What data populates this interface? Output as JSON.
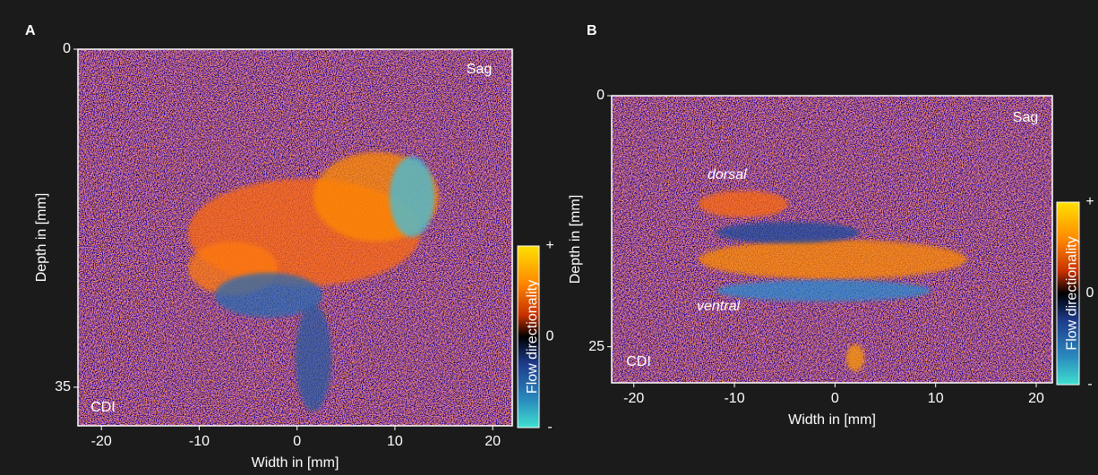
{
  "panels": [
    {
      "label": "A",
      "view": "Sag",
      "mode": "CDI",
      "x_axis_label": "Width in [mm]",
      "y_axis_label": "Depth in [mm]",
      "xlim": [
        -22.4,
        22
      ],
      "xticks": [
        -20,
        -10,
        0,
        10,
        20
      ],
      "ylim": [
        0,
        39
      ],
      "yticks": [
        0,
        35
      ],
      "colorbar": {
        "label": "Flow directionality",
        "ticks": [
          "+",
          "0",
          "-"
        ]
      }
    },
    {
      "label": "B",
      "view": "Sag",
      "mode": "CDI",
      "x_axis_label": "Width in [mm]",
      "y_axis_label": "Depth in [mm]",
      "xlim": [
        -22.2,
        21.6
      ],
      "xticks": [
        -20,
        -10,
        0,
        10,
        20
      ],
      "ylim": [
        0,
        28.6
      ],
      "yticks": [
        0,
        25
      ],
      "colorbar": {
        "label": "Flow directionality",
        "ticks": [
          "+",
          "0",
          "-"
        ]
      },
      "annotations": [
        "dorsal",
        "ventral"
      ]
    }
  ]
}
